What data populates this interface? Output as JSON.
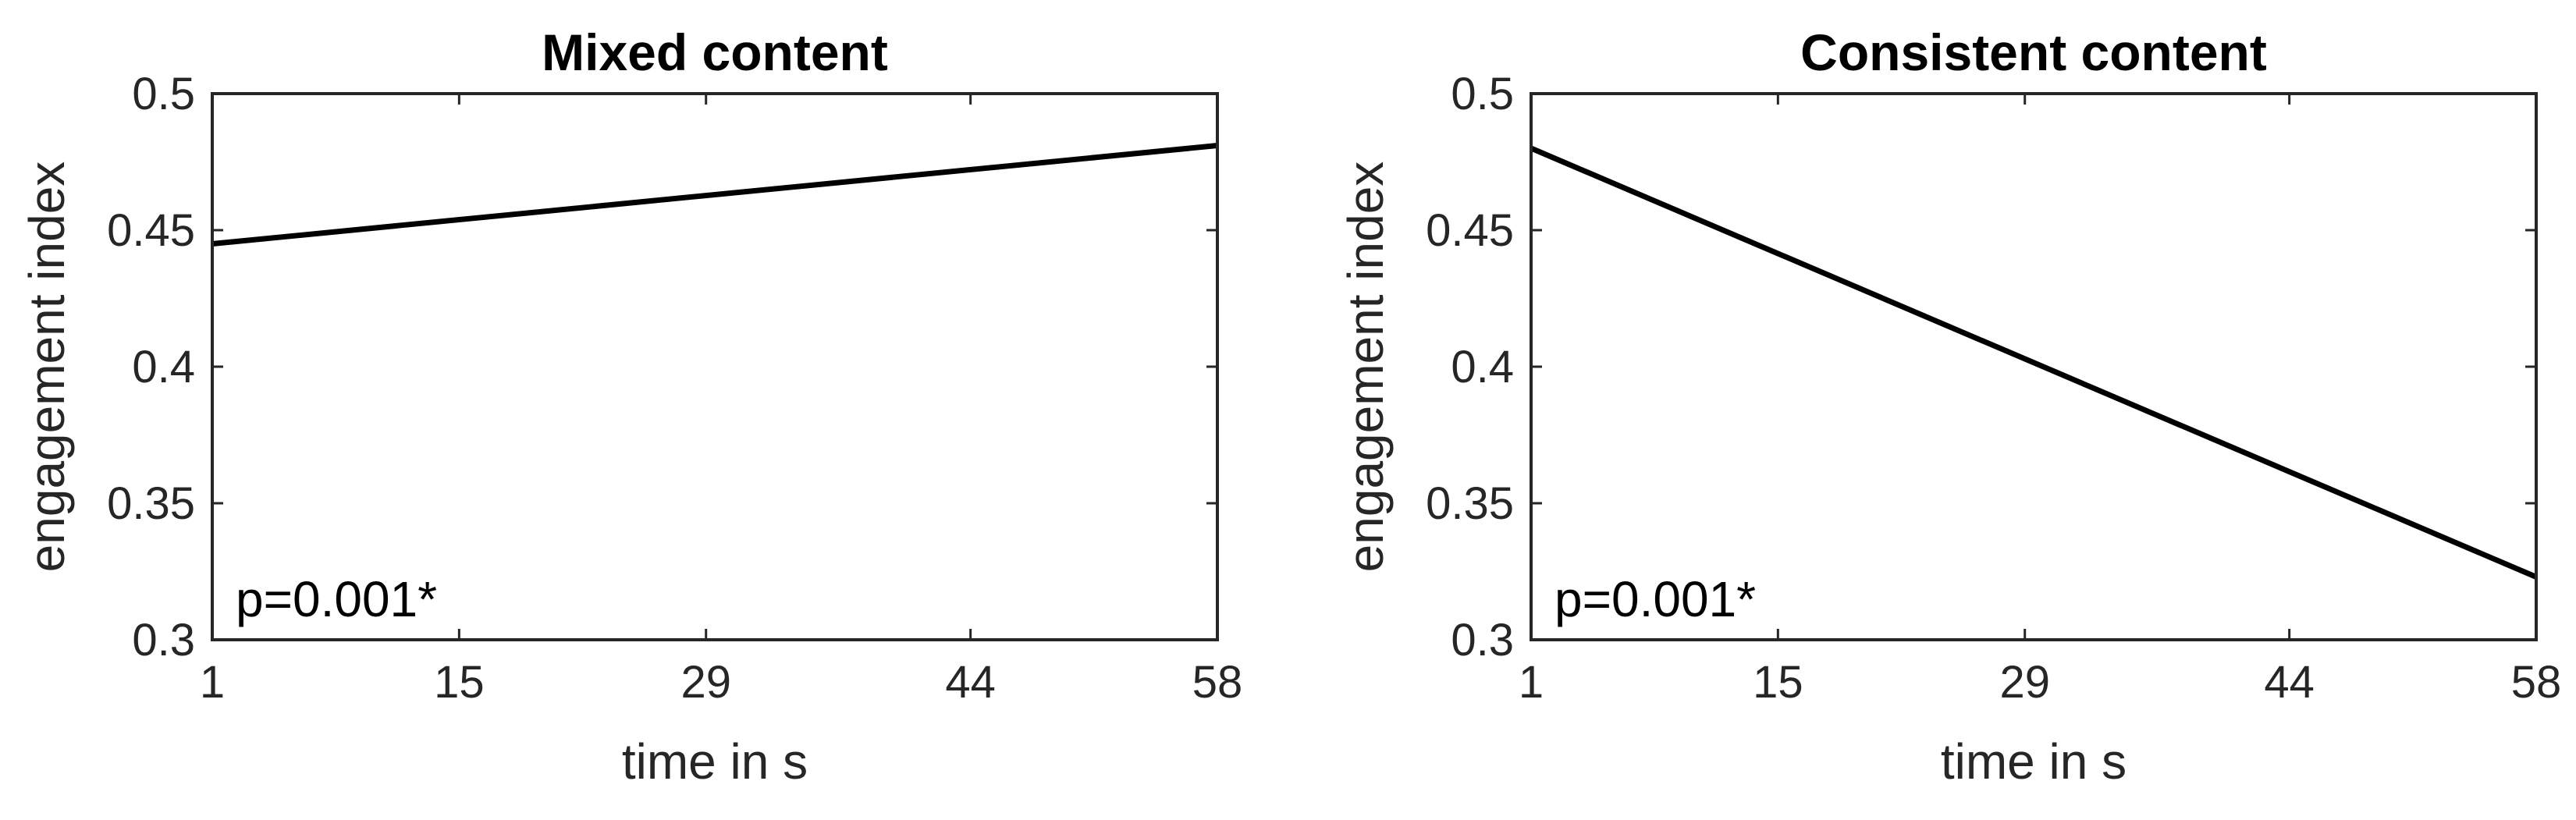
{
  "chart_data": [
    {
      "type": "line",
      "title": "Mixed content",
      "xlabel": "time in s",
      "ylabel": "engagement index",
      "xlim": [
        1,
        58
      ],
      "ylim": [
        0.3,
        0.5
      ],
      "xticks": [
        1,
        15,
        29,
        44,
        58
      ],
      "yticks": [
        0.3,
        0.35,
        0.4,
        0.45,
        0.5
      ],
      "xtick_labels": [
        "1",
        "15",
        "29",
        "44",
        "58"
      ],
      "ytick_labels": [
        "0.3",
        "0.35",
        "0.4",
        "0.45",
        "0.5"
      ],
      "annotation": "p=0.001*",
      "grid": false,
      "series": [
        {
          "x": [
            1,
            58
          ],
          "y": [
            0.445,
            0.481
          ],
          "color": "#000000"
        }
      ]
    },
    {
      "type": "line",
      "title": "Consistent content",
      "xlabel": "time in s",
      "ylabel": "engagement index",
      "xlim": [
        1,
        58
      ],
      "ylim": [
        0.3,
        0.5
      ],
      "xticks": [
        1,
        15,
        29,
        44,
        58
      ],
      "yticks": [
        0.3,
        0.35,
        0.4,
        0.45,
        0.5
      ],
      "xtick_labels": [
        "1",
        "15",
        "29",
        "44",
        "58"
      ],
      "ytick_labels": [
        "0.3",
        "0.35",
        "0.4",
        "0.45",
        "0.5"
      ],
      "annotation": "p=0.001*",
      "grid": false,
      "series": [
        {
          "x": [
            1,
            58
          ],
          "y": [
            0.48,
            0.323
          ],
          "color": "#000000"
        }
      ]
    }
  ]
}
